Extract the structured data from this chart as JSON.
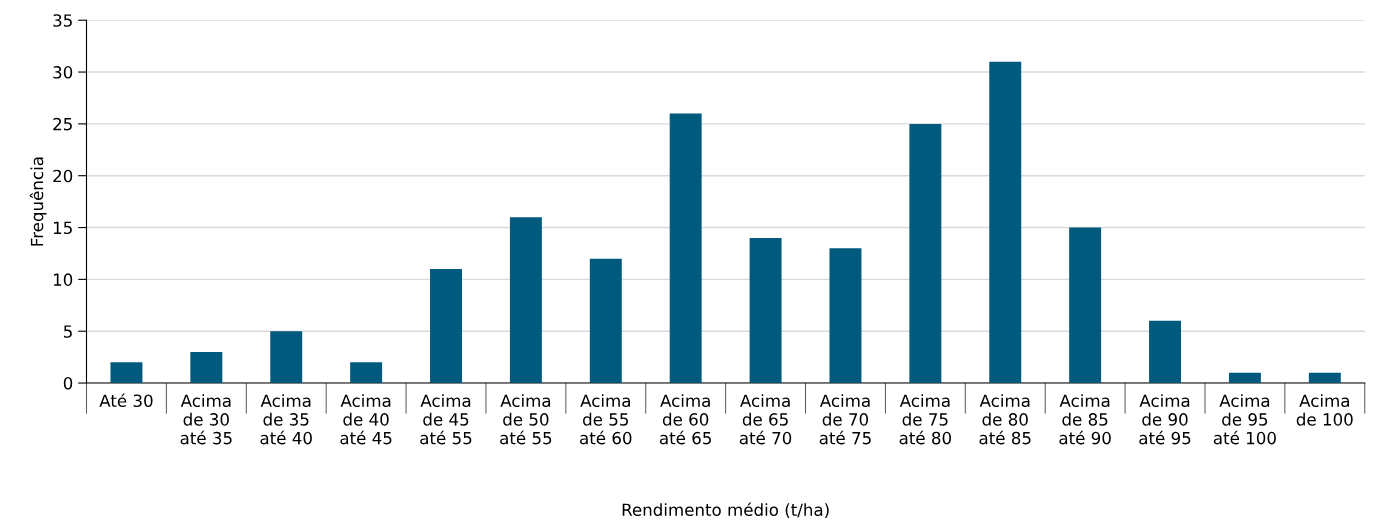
{
  "chart_data": {
    "type": "bar",
    "xlabel": "Rendimento médio (t/ha)",
    "ylabel": "Frequência",
    "categories": [
      "Até 30",
      "Acima\nde 30\naté 35",
      "Acima\nde 35\naté 40",
      "Acima\nde 40\naté 45",
      "Acima\nde 45\naté 55",
      "Acima\nde 50\naté 55",
      "Acima\nde 55\naté 60",
      "Acima\nde 60\naté 65",
      "Acima\nde 65\naté 70",
      "Acima\nde 70\naté 75",
      "Acima\nde 75\naté 80",
      "Acima\nde 80\naté 85",
      "Acima\nde 85\naté 90",
      "Acima\nde 90\naté 95",
      "Acima\nde 95\naté 100",
      "Acima\nde 100"
    ],
    "values": [
      2,
      3,
      5,
      2,
      11,
      16,
      12,
      26,
      14,
      13,
      25,
      31,
      15,
      6,
      1,
      1
    ],
    "color": "#005a7e",
    "ylim": [
      0,
      35
    ],
    "yticks": [
      0,
      5,
      10,
      15,
      20,
      25,
      30,
      35
    ],
    "grid": "y"
  }
}
